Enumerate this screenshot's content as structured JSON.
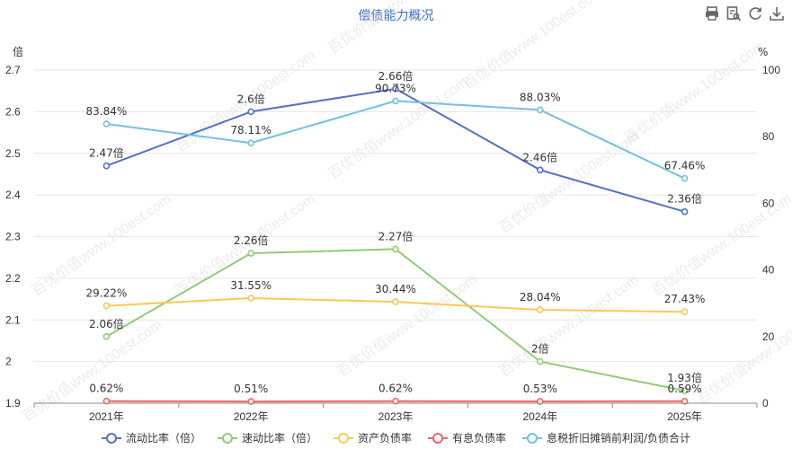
{
  "chart_data": {
    "type": "line",
    "title": "偿债能力概况",
    "categories": [
      "2021年",
      "2022年",
      "2023年",
      "2024年",
      "2025年"
    ],
    "y_left": {
      "unit": "倍",
      "min": 1.9,
      "max": 2.7,
      "ticks": [
        "1.9",
        "2",
        "2.1",
        "2.2",
        "2.3",
        "2.4",
        "2.5",
        "2.6",
        "2.7"
      ]
    },
    "y_right": {
      "unit": "%",
      "min": 0,
      "max": 100,
      "ticks": [
        "0",
        "20",
        "40",
        "60",
        "80",
        "100"
      ]
    },
    "grid": true,
    "legend_position": "bottom",
    "series": [
      {
        "name": "流动比率（倍）",
        "axis": "left",
        "color": "#5470c6",
        "values": [
          2.47,
          2.6,
          2.655,
          2.46,
          2.36
        ],
        "labels": [
          "2.47倍",
          "2.6倍",
          "2.66倍",
          "2.46倍",
          "2.36倍"
        ]
      },
      {
        "name": "速动比率（倍）",
        "axis": "left",
        "color": "#91cc75",
        "values": [
          2.06,
          2.26,
          2.27,
          2.0,
          1.93
        ],
        "labels": [
          "2.06倍",
          "2.26倍",
          "2.27倍",
          "2倍",
          "1.93倍"
        ]
      },
      {
        "name": "资产负债率",
        "axis": "right",
        "color": "#fac858",
        "values": [
          29.22,
          31.55,
          30.44,
          28.04,
          27.43
        ],
        "labels": [
          "29.22%",
          "31.55%",
          "30.44%",
          "28.04%",
          "27.43%"
        ]
      },
      {
        "name": "有息负债率",
        "axis": "right",
        "color": "#ee6666",
        "values": [
          0.62,
          0.51,
          0.62,
          0.53,
          0.59
        ],
        "labels": [
          "0.62%",
          "0.51%",
          "0.62%",
          "0.53%",
          "0.59%"
        ]
      },
      {
        "name": "息税折旧摊销前利润/负债合计",
        "axis": "right",
        "color": "#73c0de",
        "values": [
          83.84,
          78.11,
          90.73,
          88.03,
          67.46
        ],
        "labels": [
          "83.84%",
          "78.11%",
          "90.73%",
          "88.03%",
          "67.46%"
        ]
      }
    ]
  },
  "toolbox": {
    "icons": [
      "print-icon",
      "data-view-icon",
      "refresh-icon",
      "download-icon"
    ]
  },
  "watermark": "百优价值www.100est.com"
}
